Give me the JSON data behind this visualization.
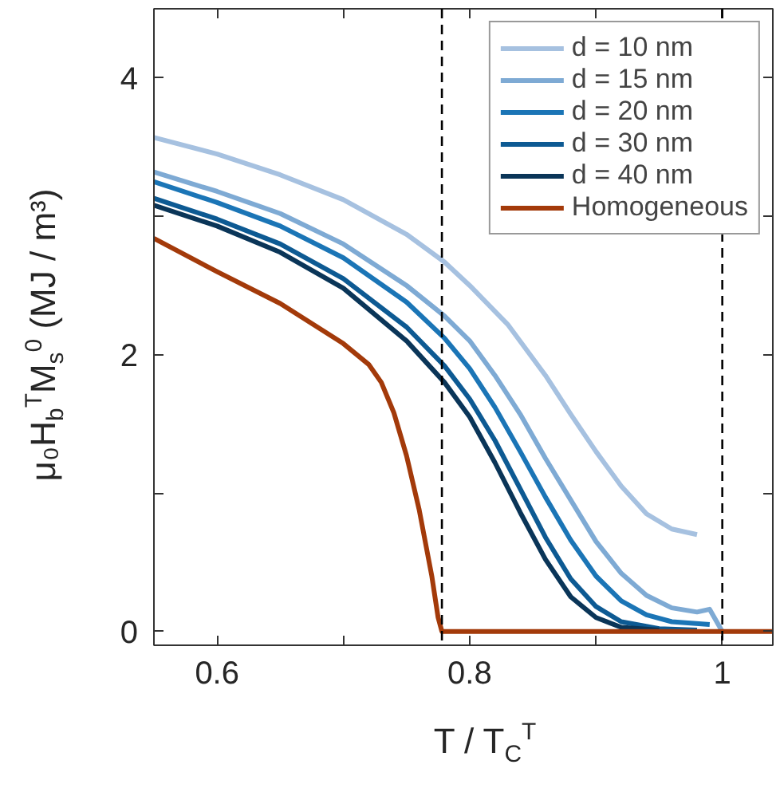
{
  "chart_data": {
    "type": "line",
    "xlabel": "T / T$_{C}$$^{T}$",
    "ylabel": "μ₀H$_{b}$$^{T}$M$_{s}$$^{0}$ (MJ / m³)",
    "xlim": [
      0.55,
      1.04
    ],
    "ylim": [
      -0.1,
      4.5
    ],
    "xticks": [
      0.6,
      {
        "value": 0.7,
        "label": null
      },
      0.8,
      {
        "value": 0.9,
        "label": null
      },
      1
    ],
    "yticks": [
      0,
      {
        "value": 1,
        "label": null
      },
      2,
      {
        "value": 3,
        "label": null
      },
      4
    ],
    "grid": false,
    "legend": "top right",
    "line_style": "solid",
    "marker": "none",
    "ref_lines": [
      {
        "axis": "x",
        "value": 0.778,
        "label": null,
        "color": "#000000",
        "line_style": "dashed"
      },
      {
        "axis": "x",
        "value": 1.0,
        "label": null,
        "color": "#000000",
        "line_style": "dashed"
      }
    ],
    "series": [
      {
        "name": "d = 10 nm",
        "color": "#a6c1e0",
        "x": [
          0.55,
          0.6,
          0.65,
          0.7,
          0.75,
          0.78,
          0.8,
          0.83,
          0.86,
          0.88,
          0.9,
          0.92,
          0.94,
          0.96,
          0.98
        ],
        "values": [
          3.57,
          3.45,
          3.3,
          3.12,
          2.87,
          2.67,
          2.5,
          2.22,
          1.85,
          1.57,
          1.3,
          1.05,
          0.85,
          0.74,
          0.7
        ]
      },
      {
        "name": "d = 15 nm",
        "color": "#7eaad4",
        "x": [
          0.55,
          0.6,
          0.65,
          0.7,
          0.75,
          0.78,
          0.8,
          0.82,
          0.84,
          0.86,
          0.88,
          0.9,
          0.92,
          0.94,
          0.96,
          0.98,
          0.99,
          1.0
        ],
        "values": [
          3.32,
          3.18,
          3.02,
          2.8,
          2.5,
          2.28,
          2.1,
          1.85,
          1.57,
          1.25,
          0.95,
          0.65,
          0.42,
          0.26,
          0.17,
          0.14,
          0.16,
          0.0
        ]
      },
      {
        "name": "d = 20 nm",
        "color": "#1b75b6",
        "x": [
          0.55,
          0.6,
          0.65,
          0.7,
          0.75,
          0.78,
          0.8,
          0.82,
          0.84,
          0.86,
          0.88,
          0.9,
          0.92,
          0.94,
          0.96,
          0.99
        ],
        "values": [
          3.25,
          3.1,
          2.93,
          2.7,
          2.38,
          2.12,
          1.9,
          1.62,
          1.3,
          0.97,
          0.66,
          0.4,
          0.22,
          0.12,
          0.07,
          0.05
        ]
      },
      {
        "name": "d = 30 nm",
        "color": "#0d5a93",
        "x": [
          0.55,
          0.6,
          0.65,
          0.7,
          0.75,
          0.78,
          0.8,
          0.82,
          0.84,
          0.86,
          0.88,
          0.9,
          0.92,
          0.95,
          0.98
        ],
        "values": [
          3.13,
          2.98,
          2.8,
          2.55,
          2.2,
          1.92,
          1.68,
          1.38,
          1.03,
          0.68,
          0.38,
          0.18,
          0.07,
          0.02,
          0.01
        ]
      },
      {
        "name": "d = 40 nm",
        "color": "#0a3558",
        "x": [
          0.55,
          0.6,
          0.65,
          0.7,
          0.75,
          0.78,
          0.8,
          0.82,
          0.84,
          0.86,
          0.88,
          0.9,
          0.92,
          0.95
        ],
        "values": [
          3.08,
          2.93,
          2.74,
          2.48,
          2.1,
          1.8,
          1.55,
          1.22,
          0.86,
          0.52,
          0.25,
          0.1,
          0.03,
          0.01
        ]
      },
      {
        "name": "Homogeneous",
        "color": "#a33a0a",
        "x": [
          0.55,
          0.6,
          0.65,
          0.7,
          0.72,
          0.73,
          0.74,
          0.75,
          0.76,
          0.77,
          0.775,
          0.778,
          1.04
        ],
        "values": [
          2.84,
          2.6,
          2.37,
          2.08,
          1.93,
          1.8,
          1.58,
          1.27,
          0.88,
          0.4,
          0.1,
          0.0,
          0.0
        ]
      }
    ]
  }
}
